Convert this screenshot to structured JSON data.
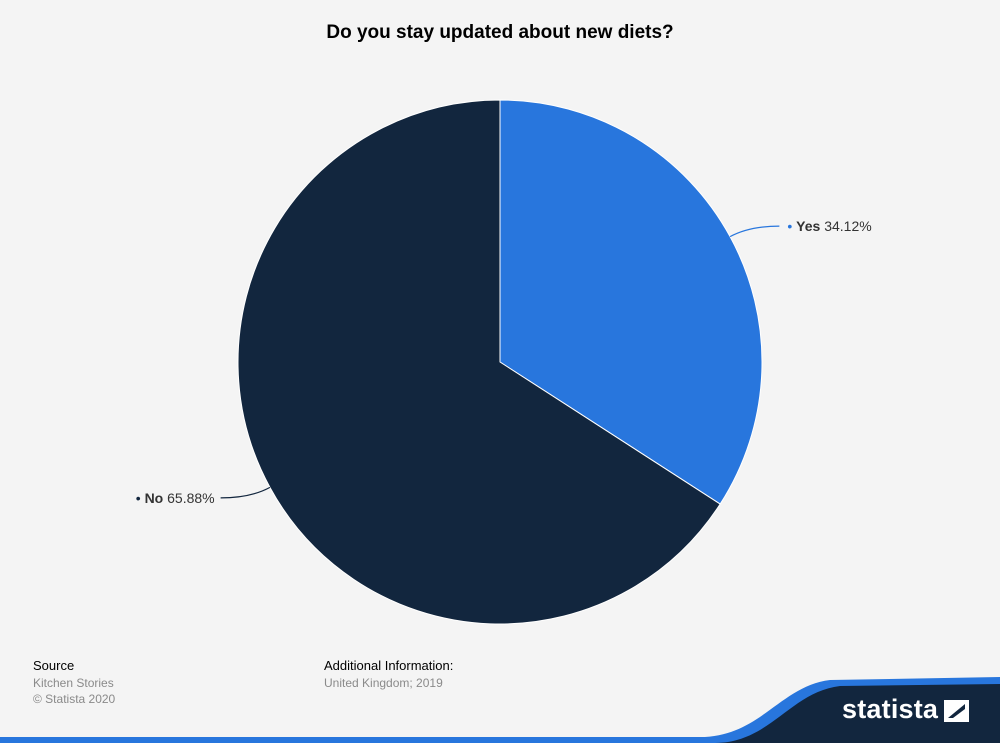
{
  "chart_data": {
    "type": "pie",
    "title": "Do you stay updated about new diets?",
    "slices": [
      {
        "label": "Yes",
        "value": 34.12,
        "display": "34.12%",
        "color": "#2876dd"
      },
      {
        "label": "No",
        "value": 65.88,
        "display": "65.88%",
        "color": "#12263e"
      }
    ]
  },
  "footer": {
    "source_heading": "Source",
    "source_name": "Kitchen Stories",
    "copyright": "© Statista 2020",
    "info_heading": "Additional Information:",
    "info_text": "United Kingdom; 2019",
    "brand": "statista"
  },
  "colors": {
    "background": "#f4f4f4",
    "accent_blue": "#2876dd",
    "dark_navy": "#12263e"
  }
}
